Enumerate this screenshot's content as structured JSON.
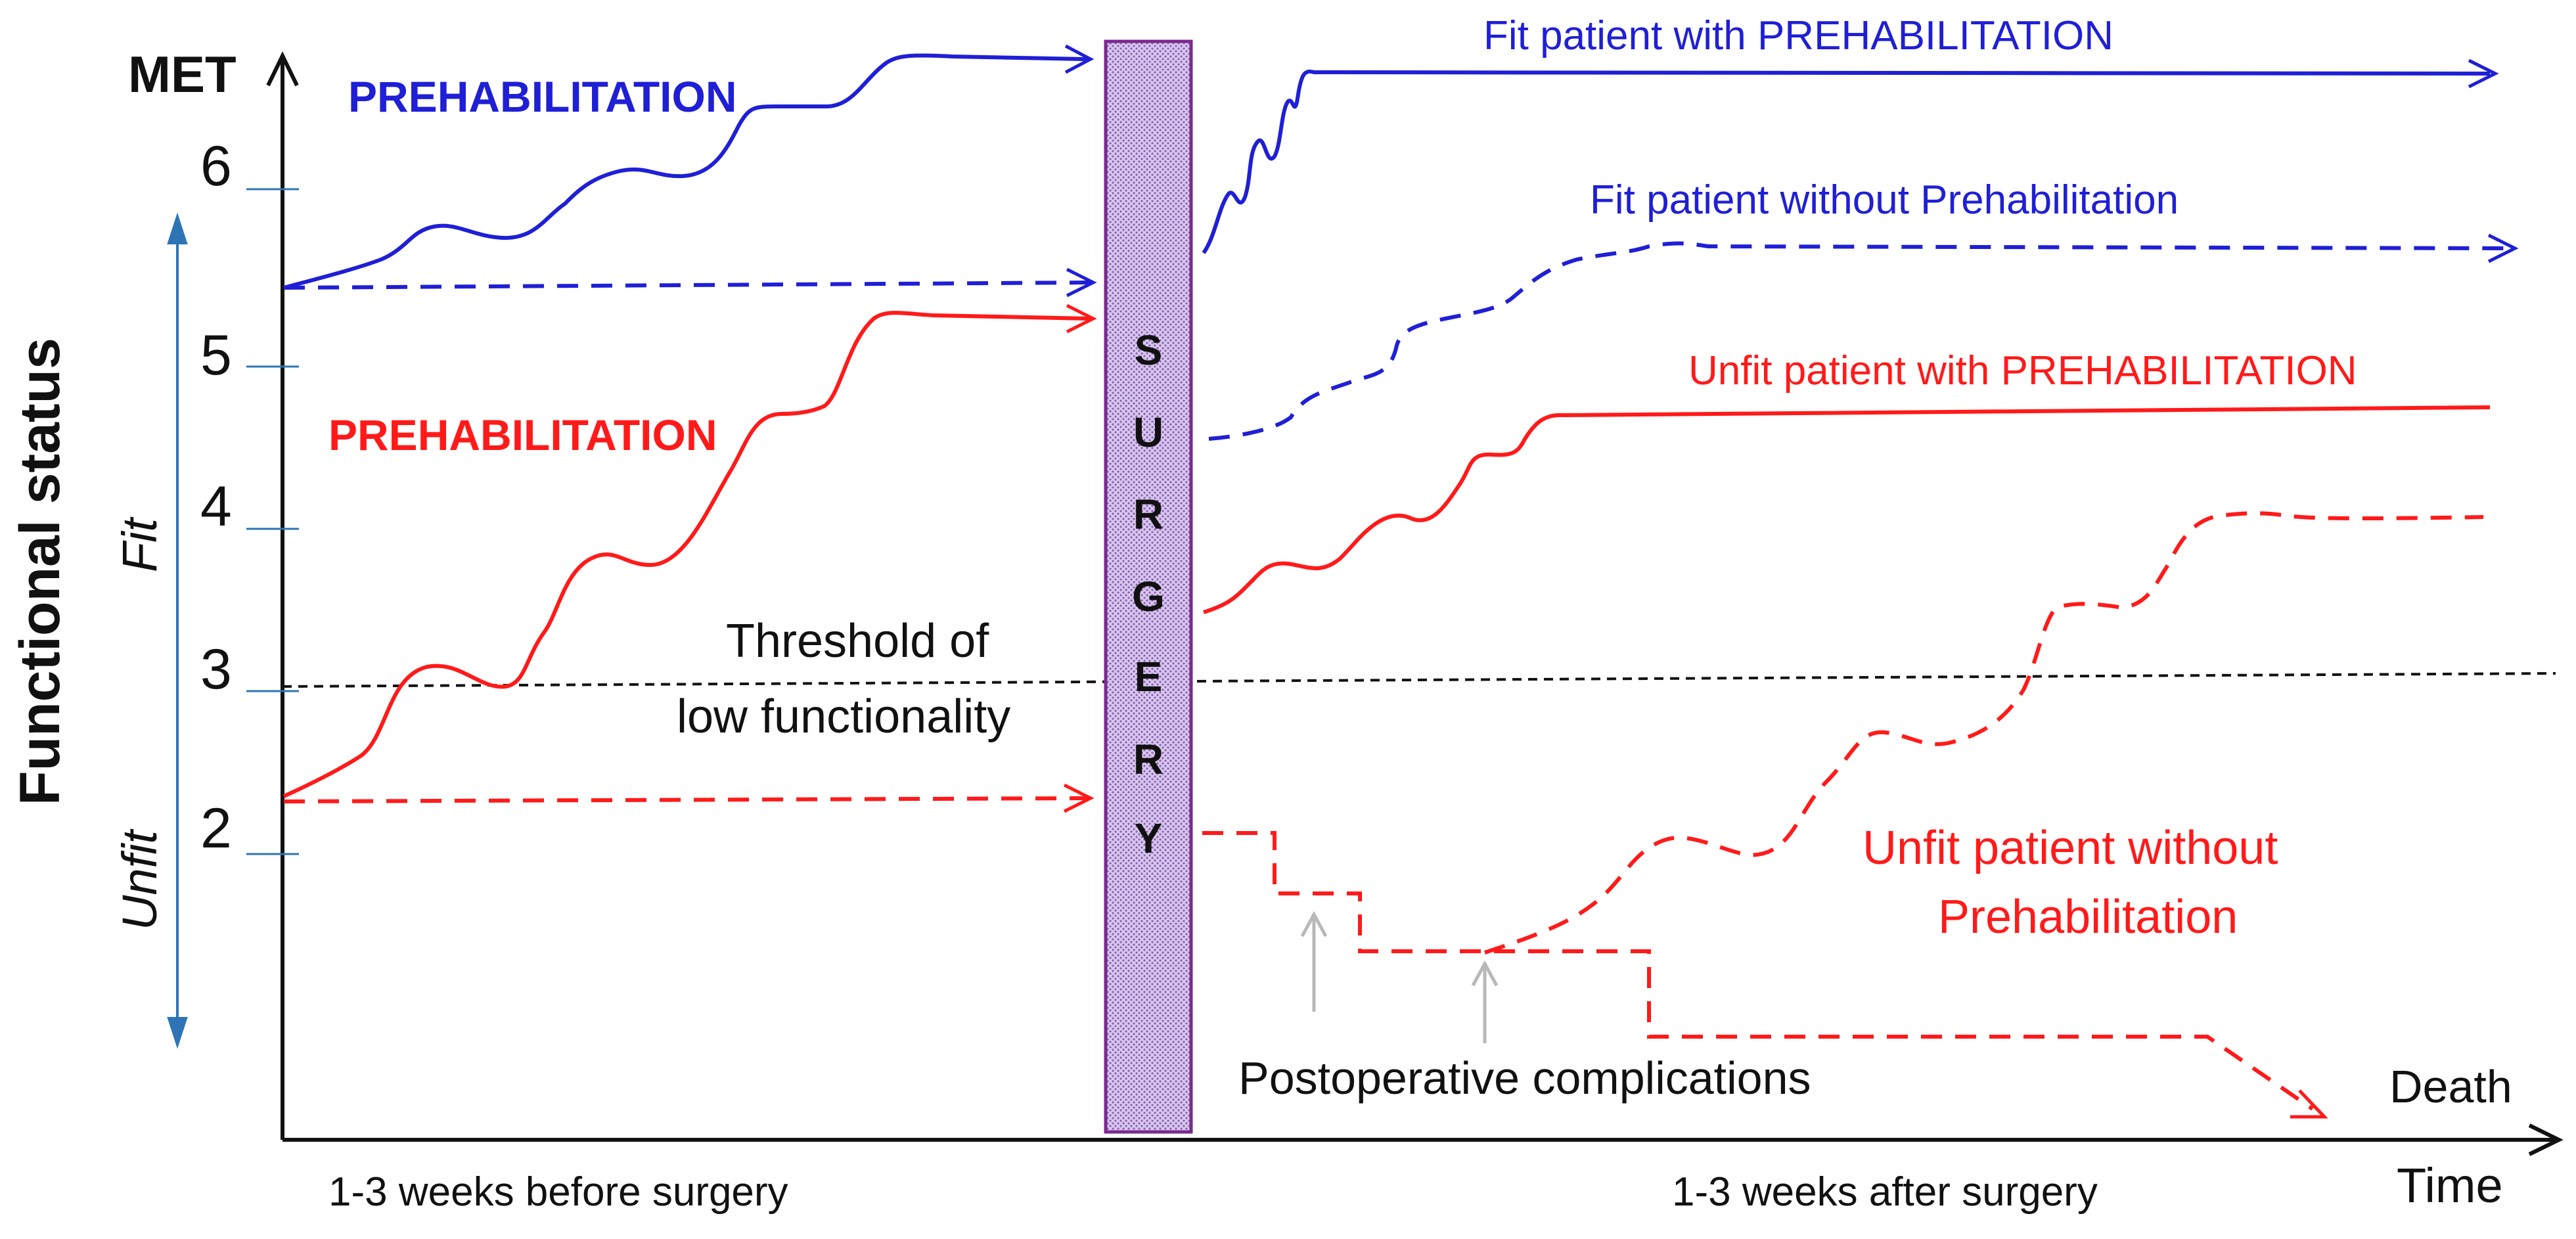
{
  "colors": {
    "blue": "#1f1fd6",
    "red": "#ff1a1a",
    "axis_blue": "#2e75b6",
    "surgery_fill": "#c9b2e6",
    "surgery_border": "#7a2a8e",
    "gray_arrow": "#b8b8b8",
    "black": "#111111"
  },
  "axis": {
    "y_label": "MET",
    "x_label": "Time",
    "functional_status": "Functional status",
    "fit": "Fit",
    "unfit": "Unfit",
    "ticks": [
      "6",
      "5",
      "4",
      "3",
      "2"
    ]
  },
  "labels": {
    "prehab_blue": "PREHABILITATION",
    "prehab_red": "PREHABILITATION",
    "threshold_line1": "Threshold of",
    "threshold_line2": "low functionality",
    "surgery_letters": [
      "S",
      "U",
      "R",
      "G",
      "E",
      "R",
      "Y"
    ],
    "fit_with": "Fit patient with PREHABILITATION",
    "fit_without": "Fit patient without Prehabilitation",
    "unfit_with": "Unfit patient with PREHABILITATION",
    "unfit_without_1": "Unfit patient without",
    "unfit_without_2": "Prehabilitation",
    "complications": "Postoperative complications",
    "death": "Death",
    "before": "1-3 weeks before surgery",
    "after": "1-3 weeks after surgery"
  }
}
